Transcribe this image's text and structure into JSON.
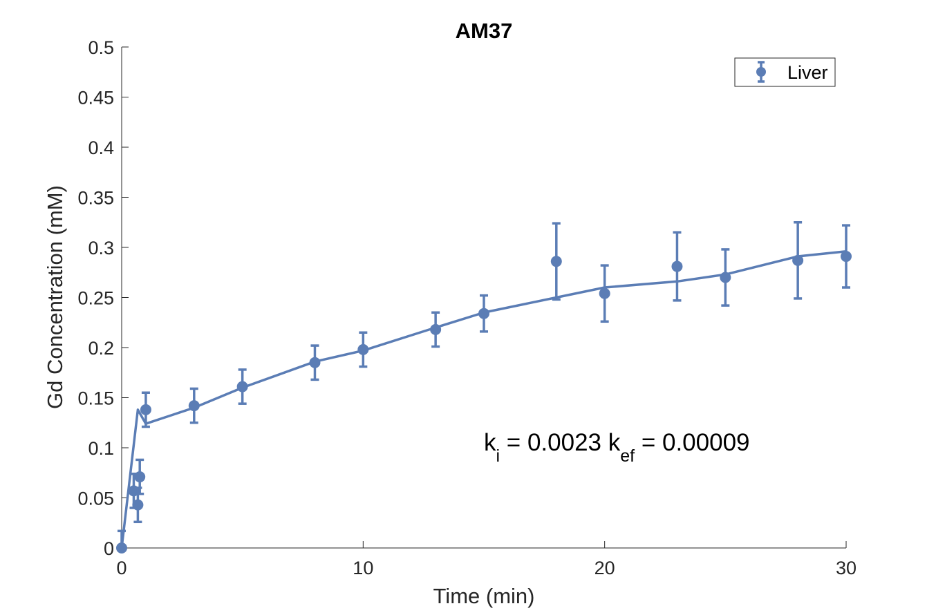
{
  "chart_data": {
    "type": "scatter",
    "title": "AM37",
    "xlabel": "Time (min)",
    "ylabel": "Gd Concentration (mM)",
    "xlim": [
      0,
      30
    ],
    "ylim": [
      0,
      0.5
    ],
    "x_ticks": [
      {
        "value": 0,
        "label": "0"
      },
      {
        "value": 10,
        "label": "10"
      },
      {
        "value": 20,
        "label": "20"
      },
      {
        "value": 30,
        "label": "30"
      }
    ],
    "y_ticks": [
      {
        "value": 0,
        "label": "0"
      },
      {
        "value": 0.05,
        "label": "0.05"
      },
      {
        "value": 0.1,
        "label": "0.1"
      },
      {
        "value": 0.15,
        "label": "0.15"
      },
      {
        "value": 0.2,
        "label": "0.2"
      },
      {
        "value": 0.25,
        "label": "0.25"
      },
      {
        "value": 0.3,
        "label": "0.3"
      },
      {
        "value": 0.35,
        "label": "0.35"
      },
      {
        "value": 0.4,
        "label": "0.4"
      },
      {
        "value": 0.45,
        "label": "0.45"
      },
      {
        "value": 0.5,
        "label": "0.5"
      }
    ],
    "grid": false,
    "legend": {
      "placement": "top-right",
      "entries": [
        "Liver"
      ]
    },
    "color": "#5b7db5",
    "series": [
      {
        "name": "Liver",
        "kind": "errorbar",
        "x": [
          0,
          0.5,
          0.67,
          0.75,
          1,
          3,
          5,
          8,
          10,
          13,
          15,
          18,
          20,
          23,
          25,
          28,
          30
        ],
        "y": [
          0,
          0.057,
          0.043,
          0.071,
          0.138,
          0.142,
          0.161,
          0.185,
          0.198,
          0.218,
          0.234,
          0.286,
          0.254,
          0.281,
          0.27,
          0.287,
          0.291
        ],
        "err": [
          0.017,
          0.017,
          0.017,
          0.017,
          0.017,
          0.017,
          0.017,
          0.017,
          0.017,
          0.017,
          0.018,
          0.038,
          0.028,
          0.034,
          0.028,
          0.038,
          0.031
        ]
      },
      {
        "kind": "fit-line",
        "x": [
          0,
          0.67,
          1,
          3,
          5,
          8,
          10,
          13,
          15,
          18,
          20,
          23,
          25,
          28,
          30
        ],
        "y": [
          0,
          0.138,
          0.124,
          0.14,
          0.16,
          0.186,
          0.197,
          0.22,
          0.235,
          0.25,
          0.26,
          0.266,
          0.273,
          0.291,
          0.296
        ]
      }
    ],
    "annotation": {
      "k_symbol": "k",
      "ki_sub": "i",
      "ki_text": " = 0.0023  ",
      "kef_sub": "ef",
      "kef_text": " = 0.00009"
    }
  }
}
